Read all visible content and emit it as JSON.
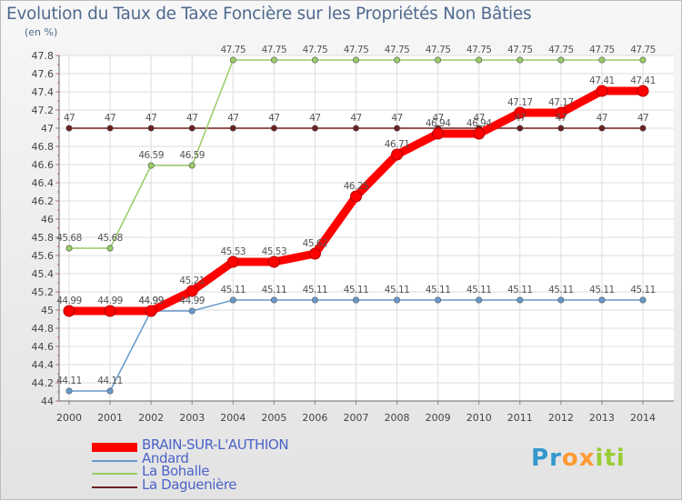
{
  "chart_data": {
    "type": "line",
    "title": "Evolution du Taux de Taxe Foncière sur les Propriétés Non Bâties",
    "ylabel": "(en %)",
    "xlabel": "",
    "x": [
      "2000",
      "2001",
      "2002",
      "2003",
      "2004",
      "2005",
      "2006",
      "2007",
      "2008",
      "2009",
      "2010",
      "2011",
      "2012",
      "2013",
      "2014"
    ],
    "ylim": [
      44,
      47.8
    ],
    "yticks": [
      "44",
      "44.2",
      "44.4",
      "44.6",
      "44.8",
      "45",
      "45.2",
      "45.4",
      "45.6",
      "45.8",
      "46",
      "46.2",
      "46.4",
      "46.6",
      "46.8",
      "47",
      "47.2",
      "47.4",
      "47.6",
      "47.8"
    ],
    "grid": true,
    "legend_position": "bottom-left",
    "series": [
      {
        "name": "BRAIN-SUR-L'AUTHION",
        "color": "#ff0000",
        "values": [
          44.99,
          44.99,
          44.99,
          45.21,
          45.53,
          45.53,
          45.62,
          46.25,
          46.71,
          46.94,
          46.94,
          47.17,
          47.17,
          47.41,
          47.41
        ],
        "labels": [
          "44.99",
          "44.99",
          "44.99",
          "45.21",
          "45.53",
          "45.53",
          "45.62",
          "46.25",
          "46.71",
          "46.94",
          "46.94",
          "47.17",
          "47.17",
          "47.41",
          "47.41"
        ]
      },
      {
        "name": "Andard",
        "color": "#6699cc",
        "values": [
          44.11,
          44.11,
          44.99,
          44.99,
          45.11,
          45.11,
          45.11,
          45.11,
          45.11,
          45.11,
          45.11,
          45.11,
          45.11,
          45.11,
          45.11
        ],
        "labels": [
          "44.11",
          "44.11",
          "44.99",
          "44.99",
          "45.11",
          "45.11",
          "45.11",
          "45.11",
          "45.11",
          "45.11",
          "45.11",
          "45.11",
          "45.11",
          "45.11",
          "45.11"
        ]
      },
      {
        "name": "La Bohalle",
        "color": "#99cc66",
        "values": [
          45.68,
          45.68,
          46.59,
          46.59,
          47.75,
          47.75,
          47.75,
          47.75,
          47.75,
          47.75,
          47.75,
          47.75,
          47.75,
          47.75,
          47.75
        ],
        "labels": [
          "45.68",
          "45.68",
          "46.59",
          "46.59",
          "47.75",
          "47.75",
          "47.75",
          "47.75",
          "47.75",
          "47.75",
          "47.75",
          "47.75",
          "47.75",
          "47.75",
          "47.75"
        ]
      },
      {
        "name": "La Daguenière",
        "color": "#6b1f1f",
        "values": [
          47,
          47,
          47,
          47,
          47,
          47,
          47,
          47,
          47,
          47,
          47,
          47,
          47,
          47,
          47
        ],
        "labels": [
          "47",
          "47",
          "47",
          "47",
          "47",
          "47",
          "47",
          "47",
          "47",
          "47",
          "47",
          "47",
          "47",
          "47",
          "47"
        ]
      }
    ]
  },
  "logo": {
    "letters": [
      "P",
      "r",
      "o",
      "x",
      "i",
      "t",
      "i"
    ],
    "colors": [
      "#3399cc",
      "#3399cc",
      "#ff9933",
      "#ff9933",
      "#99cc33",
      "#99cc33",
      "#99cc33"
    ]
  }
}
